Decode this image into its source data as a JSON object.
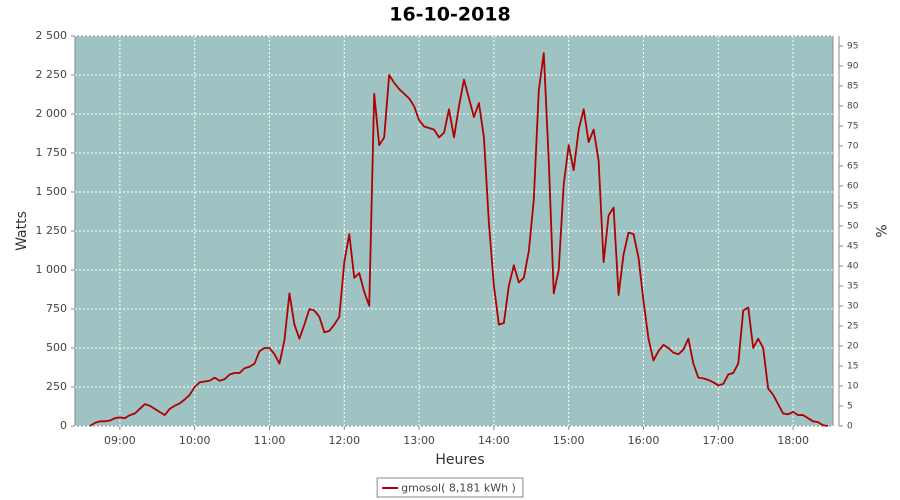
{
  "chart_data": {
    "type": "line",
    "title": "16-10-2018",
    "xlabel": "Heures",
    "ylabel": "Watts",
    "y2label": "%",
    "x": [
      "08:36",
      "08:40",
      "08:44",
      "08:48",
      "08:52",
      "08:56",
      "09:00",
      "09:04",
      "09:08",
      "09:12",
      "09:16",
      "09:20",
      "09:24",
      "09:28",
      "09:32",
      "09:36",
      "09:40",
      "09:44",
      "09:48",
      "09:52",
      "09:56",
      "10:00",
      "10:04",
      "10:08",
      "10:12",
      "10:16",
      "10:20",
      "10:24",
      "10:28",
      "10:32",
      "10:36",
      "10:40",
      "10:44",
      "10:48",
      "10:52",
      "10:56",
      "11:00",
      "11:04",
      "11:08",
      "11:12",
      "11:16",
      "11:20",
      "11:24",
      "11:28",
      "11:32",
      "11:36",
      "11:40",
      "11:44",
      "11:48",
      "11:52",
      "11:56",
      "12:00",
      "12:04",
      "12:08",
      "12:12",
      "12:16",
      "12:20",
      "12:24",
      "12:28",
      "12:32",
      "12:36",
      "12:40",
      "12:44",
      "12:48",
      "12:52",
      "12:56",
      "13:00",
      "13:04",
      "13:08",
      "13:12",
      "13:16",
      "13:20",
      "13:24",
      "13:28",
      "13:32",
      "13:36",
      "13:40",
      "13:44",
      "13:48",
      "13:52",
      "13:56",
      "14:00",
      "14:04",
      "14:08",
      "14:12",
      "14:16",
      "14:20",
      "14:24",
      "14:28",
      "14:32",
      "14:36",
      "14:40",
      "14:44",
      "14:48",
      "14:52",
      "14:56",
      "15:00",
      "15:04",
      "15:08",
      "15:12",
      "15:16",
      "15:20",
      "15:24",
      "15:28",
      "15:32",
      "15:36",
      "15:40",
      "15:44",
      "15:48",
      "15:52",
      "15:56",
      "16:00",
      "16:04",
      "16:08",
      "16:12",
      "16:16",
      "16:20",
      "16:24",
      "16:28",
      "16:32",
      "16:36",
      "16:40",
      "16:44",
      "16:48",
      "16:52",
      "16:56",
      "17:00",
      "17:04",
      "17:08",
      "17:12",
      "17:16",
      "17:20",
      "17:24",
      "17:28",
      "17:32",
      "17:36",
      "17:40",
      "17:44",
      "17:48",
      "17:52",
      "17:56",
      "18:00",
      "18:04",
      "18:08",
      "18:12",
      "18:16",
      "18:20",
      "18:24",
      "18:28"
    ],
    "series": [
      {
        "name": "gmosol( 8,181 kWh )",
        "color": "#b00000",
        "values": [
          0,
          20,
          30,
          30,
          35,
          50,
          55,
          50,
          70,
          80,
          110,
          140,
          130,
          110,
          90,
          70,
          110,
          130,
          145,
          170,
          200,
          250,
          280,
          285,
          290,
          310,
          290,
          300,
          330,
          340,
          340,
          370,
          380,
          400,
          480,
          500,
          500,
          460,
          400,
          550,
          850,
          650,
          560,
          650,
          750,
          740,
          700,
          600,
          610,
          650,
          700,
          1050,
          1230,
          950,
          980,
          860,
          770,
          2130,
          1800,
          1850,
          2250,
          2200,
          2160,
          2130,
          2100,
          2050,
          1960,
          1920,
          1910,
          1900,
          1850,
          1880,
          2030,
          1850,
          2050,
          2220,
          2100,
          1980,
          2070,
          1850,
          1300,
          900,
          650,
          660,
          900,
          1030,
          920,
          950,
          1120,
          1450,
          2150,
          2390,
          1700,
          850,
          1000,
          1550,
          1800,
          1640,
          1900,
          2030,
          1820,
          1900,
          1700,
          1050,
          1350,
          1400,
          840,
          1100,
          1240,
          1230,
          1080,
          800,
          560,
          420,
          480,
          520,
          500,
          470,
          460,
          490,
          560,
          400,
          310,
          305,
          295,
          280,
          260,
          270,
          330,
          340,
          400,
          740,
          760,
          500,
          560,
          500,
          240,
          200,
          140,
          80,
          75,
          90,
          70,
          70,
          50,
          30,
          25,
          5,
          0
        ]
      }
    ],
    "xlim": [
      "08:24",
      "18:32"
    ],
    "xticks": [
      "09:00",
      "10:00",
      "11:00",
      "12:00",
      "13:00",
      "14:00",
      "15:00",
      "16:00",
      "17:00",
      "18:00"
    ],
    "ylim": [
      0,
      2500
    ],
    "yticks": [
      0,
      250,
      500,
      750,
      {
        "value": 1000,
        "label": "1 000"
      },
      {
        "value": 1250,
        "label": "1 250"
      },
      {
        "value": 1500,
        "label": "1 500"
      },
      {
        "value": 1750,
        "label": "1 750"
      },
      {
        "value": 2000,
        "label": "2 000"
      },
      {
        "value": 2250,
        "label": "2 250"
      },
      {
        "value": 2500,
        "label": "2 500"
      }
    ],
    "y2lim": [
      0,
      97.5
    ],
    "y2ticks": [
      0,
      5,
      10,
      15,
      20,
      25,
      30,
      35,
      40,
      45,
      50,
      55,
      60,
      65,
      70,
      75,
      80,
      85,
      90,
      95
    ],
    "grid": true,
    "plot_background": "#9fc3c3",
    "legend": "bottom"
  }
}
